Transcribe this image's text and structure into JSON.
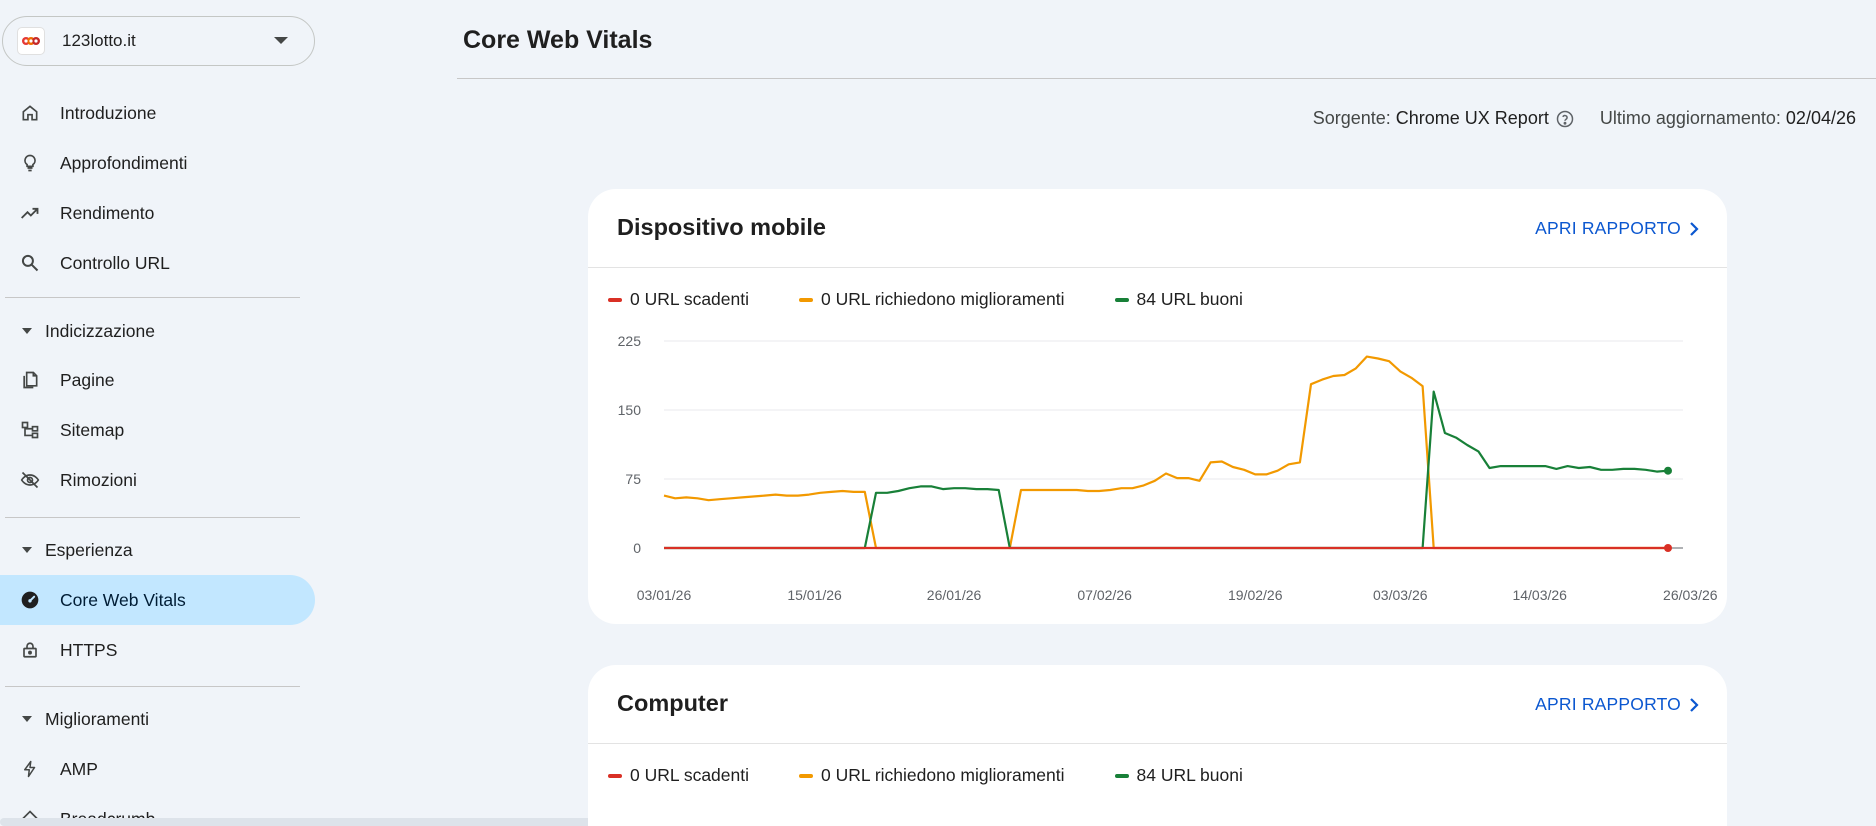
{
  "property": {
    "name": "123lotto.it"
  },
  "sidebar": {
    "top_items": [
      {
        "label": "Introduzione",
        "icon": "home-icon"
      },
      {
        "label": "Approfondimenti",
        "icon": "lightbulb-icon"
      },
      {
        "label": "Rendimento",
        "icon": "trending-up-icon"
      },
      {
        "label": "Controllo URL",
        "icon": "search-icon"
      }
    ],
    "sections": [
      {
        "label": "Indicizzazione",
        "items": [
          {
            "label": "Pagine",
            "icon": "pages-icon"
          },
          {
            "label": "Sitemap",
            "icon": "sitemap-icon"
          },
          {
            "label": "Rimozioni",
            "icon": "eye-off-icon"
          }
        ]
      },
      {
        "label": "Esperienza",
        "items": [
          {
            "label": "Core Web Vitals",
            "icon": "speed-gauge-icon",
            "active": true
          },
          {
            "label": "HTTPS",
            "icon": "lock-icon"
          }
        ]
      },
      {
        "label": "Miglioramenti",
        "items": [
          {
            "label": "AMP",
            "icon": "bolt-icon"
          },
          {
            "label": "Breadcrumb",
            "icon": "breadcrumb-icon"
          }
        ]
      }
    ]
  },
  "header": {
    "title": "Core Web Vitals",
    "source_label": "Sorgente:",
    "source_value": "Chrome UX Report",
    "updated_label": "Ultimo aggiornamento:",
    "updated_value": "02/04/26"
  },
  "cards": {
    "mobile": {
      "title": "Dispositivo mobile",
      "link": "APRI RAPPORTO",
      "legend": [
        {
          "label": "0 URL scadenti",
          "color": "#d93025"
        },
        {
          "label": "0 URL richiedono miglioramenti",
          "color": "#f29900"
        },
        {
          "label": "84 URL buoni",
          "color": "#188038"
        }
      ]
    },
    "desktop": {
      "title": "Computer",
      "link": "APRI RAPPORTO",
      "legend": [
        {
          "label": "0 URL scadenti",
          "color": "#d93025"
        },
        {
          "label": "0 URL richiedono miglioramenti",
          "color": "#f29900"
        },
        {
          "label": "84 URL buoni",
          "color": "#188038"
        }
      ]
    }
  },
  "chart_data": {
    "type": "line",
    "ylim": [
      0,
      225
    ],
    "yticks": [
      0,
      75,
      150,
      225
    ],
    "xticks": [
      "03/01/26",
      "15/01/26",
      "26/01/26",
      "07/02/26",
      "19/02/26",
      "03/03/26",
      "14/03/26",
      "26/03/26"
    ],
    "grid": true,
    "legend_position": "top-left",
    "series": [
      {
        "name": "0 URL scadenti",
        "color": "#d93025",
        "points": [
          [
            0,
            0
          ],
          [
            90,
            0
          ]
        ]
      },
      {
        "name": "0 URL richiedono miglioramenti",
        "color": "#f29900",
        "points": [
          [
            0,
            57
          ],
          [
            1,
            54
          ],
          [
            2,
            55
          ],
          [
            3,
            54
          ],
          [
            4,
            52
          ],
          [
            5,
            53
          ],
          [
            6,
            54
          ],
          [
            7,
            55
          ],
          [
            8,
            56
          ],
          [
            9,
            57
          ],
          [
            10,
            58
          ],
          [
            11,
            57
          ],
          [
            12,
            57
          ],
          [
            13,
            58
          ],
          [
            14,
            60
          ],
          [
            15,
            61
          ],
          [
            16,
            62
          ],
          [
            17,
            61
          ],
          [
            18,
            61
          ],
          [
            19,
            0
          ],
          [
            20,
            0
          ],
          [
            21,
            0
          ],
          [
            22,
            0
          ],
          [
            23,
            0
          ],
          [
            24,
            0
          ],
          [
            25,
            0
          ],
          [
            26,
            0
          ],
          [
            27,
            0
          ],
          [
            28,
            0
          ],
          [
            29,
            0
          ],
          [
            30,
            0
          ],
          [
            31,
            0
          ],
          [
            32,
            63
          ],
          [
            33,
            63
          ],
          [
            34,
            63
          ],
          [
            35,
            63
          ],
          [
            36,
            63
          ],
          [
            37,
            63
          ],
          [
            38,
            62
          ],
          [
            39,
            62
          ],
          [
            40,
            63
          ],
          [
            41,
            65
          ],
          [
            42,
            65
          ],
          [
            43,
            68
          ],
          [
            44,
            73
          ],
          [
            45,
            81
          ],
          [
            46,
            76
          ],
          [
            47,
            76
          ],
          [
            48,
            73
          ],
          [
            49,
            93
          ],
          [
            50,
            94
          ],
          [
            51,
            88
          ],
          [
            52,
            85
          ],
          [
            53,
            80
          ],
          [
            54,
            80
          ],
          [
            55,
            84
          ],
          [
            56,
            91
          ],
          [
            57,
            93
          ],
          [
            58,
            178
          ],
          [
            59,
            183
          ],
          [
            60,
            187
          ],
          [
            61,
            188
          ],
          [
            62,
            195
          ],
          [
            63,
            208
          ],
          [
            64,
            206
          ],
          [
            65,
            203
          ],
          [
            66,
            192
          ],
          [
            67,
            185
          ],
          [
            68,
            176
          ],
          [
            69,
            0
          ],
          [
            70,
            0
          ],
          [
            90,
            0
          ]
        ]
      },
      {
        "name": "84 URL buoni",
        "color": "#188038",
        "points": [
          [
            0,
            0
          ],
          [
            18,
            0
          ],
          [
            19,
            60
          ],
          [
            20,
            60
          ],
          [
            21,
            62
          ],
          [
            22,
            65
          ],
          [
            23,
            67
          ],
          [
            24,
            67
          ],
          [
            25,
            64
          ],
          [
            26,
            65
          ],
          [
            27,
            65
          ],
          [
            28,
            64
          ],
          [
            29,
            64
          ],
          [
            30,
            63
          ],
          [
            31,
            0
          ],
          [
            68,
            0
          ],
          [
            69,
            170
          ],
          [
            70,
            125
          ],
          [
            71,
            120
          ],
          [
            72,
            112
          ],
          [
            73,
            105
          ],
          [
            74,
            87
          ],
          [
            75,
            89
          ],
          [
            76,
            89
          ],
          [
            77,
            89
          ],
          [
            78,
            89
          ],
          [
            79,
            89
          ],
          [
            80,
            86
          ],
          [
            81,
            89
          ],
          [
            82,
            87
          ],
          [
            83,
            88
          ],
          [
            84,
            85
          ],
          [
            85,
            85
          ],
          [
            86,
            86
          ],
          [
            87,
            86
          ],
          [
            88,
            85
          ],
          [
            89,
            83
          ],
          [
            90,
            84
          ]
        ]
      }
    ]
  }
}
